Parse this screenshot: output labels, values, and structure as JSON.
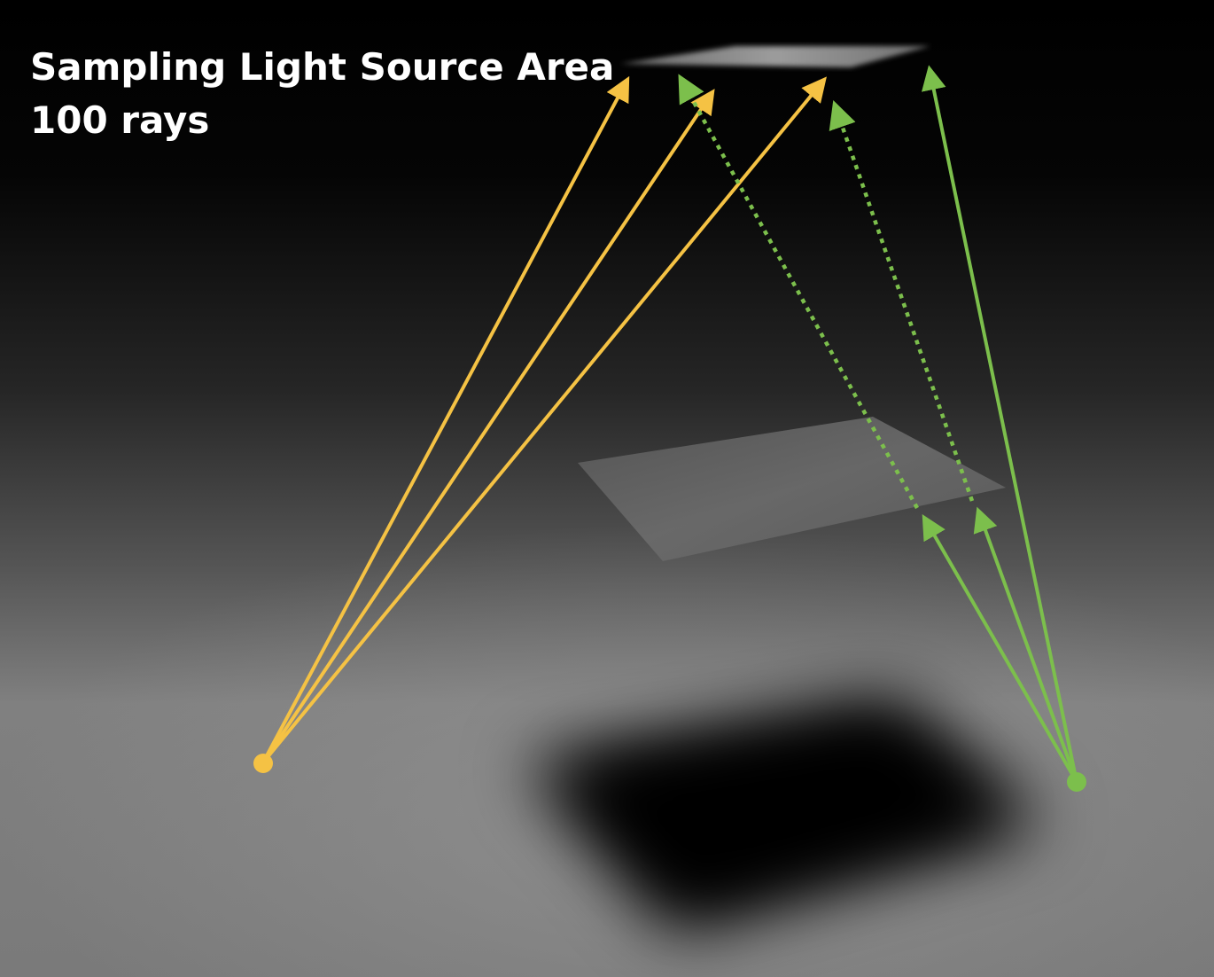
{
  "title": {
    "line1": "Sampling Light Source Area",
    "line2": "100 rays"
  },
  "colors": {
    "background_dark": "#000000",
    "floor_light": "#8e8e8e",
    "shadow": "#000000",
    "light_source": "#9a9a9a",
    "occluder": "#6f6f6f",
    "yellow_ray": "#f5c244",
    "green_ray": "#7cbf4c",
    "title_text": "#ffffff"
  },
  "elements": {
    "light_source": "area-light-rectangle",
    "occluder": "occluding-plane",
    "shadow": "soft-shadow",
    "yellow_point": "unoccluded-sample-point",
    "green_point": "partially-occluded-sample-point"
  },
  "rays": {
    "yellow": [
      {
        "style": "solid"
      },
      {
        "style": "solid"
      },
      {
        "style": "solid"
      }
    ],
    "green": [
      {
        "style": "solid",
        "segments": "blocked-by-occluder"
      },
      {
        "style": "solid",
        "segments": "blocked-by-occluder"
      },
      {
        "style": "solid",
        "segments": "reaches-light"
      }
    ],
    "green_blocked_continuation": "dotted"
  }
}
